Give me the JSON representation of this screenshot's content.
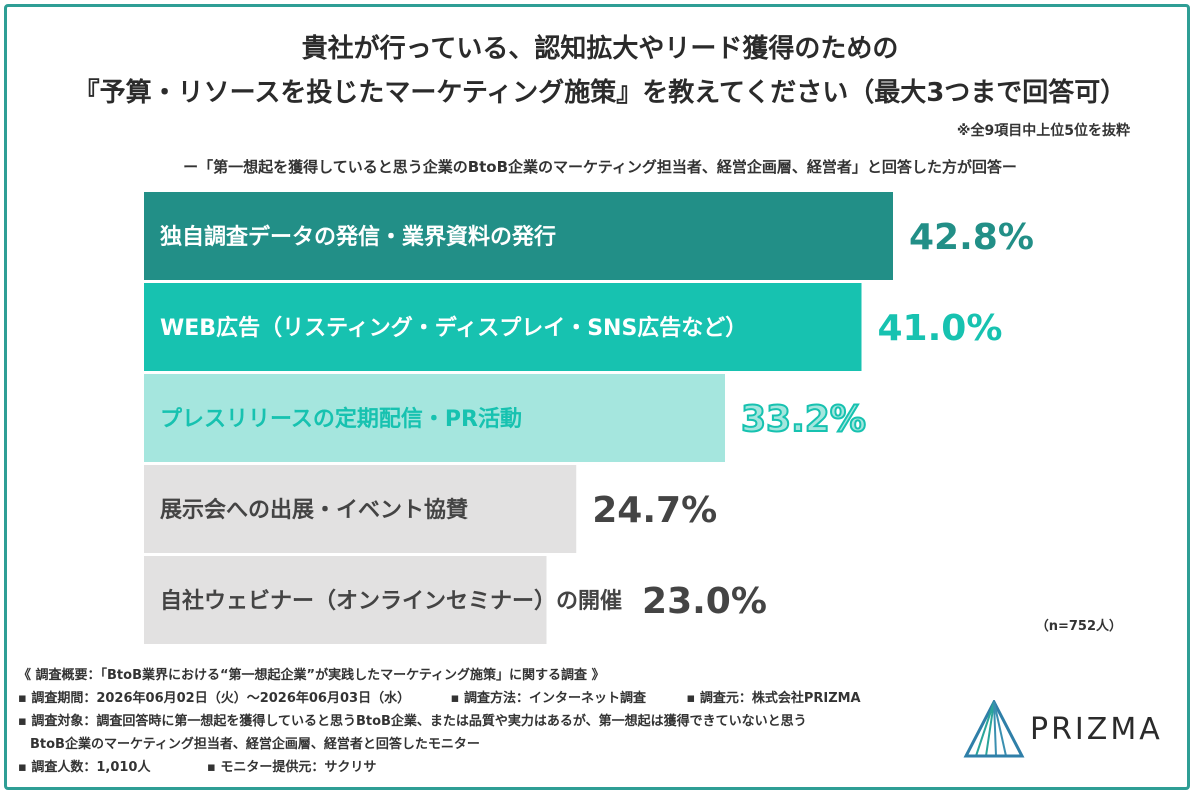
{
  "title_line1": "貴社が行っている、認知拡大やリード獲得のための",
  "title_line2": "『予算・リソースを投じたマーケティング施策』を教えてください（最大3つまで回答可）",
  "note": "※全9項目中上位5位を抜粋",
  "subtitle": "ー「第一想起を獲得していると思う企業のBtoB企業のマーケティング担当者、経営企画層、経営者」と回答した方が回答ー",
  "n_label": "（n=752人）",
  "footer": {
    "line1": "《 調査概要：「BtoB業界における“第一想起企業”が実践したマーケティング施策」に関する調査 》",
    "period": "▪ 調査期間：2026年06月02日（火）〜2026年06月03日（水）",
    "method": "▪ 調査方法：インターネット調査",
    "source": "▪ 調査元：株式会社PRIZMA",
    "target1": "▪ 調査対象：調査回答時に第一想起を獲得していると思うBtoB企業、または品質や実力はあるが、第一想起は獲得できていないと思う",
    "target2": "BtoB企業のマーケティング担当者、経営企画層、経営者と回答したモニター",
    "count": "▪ 調査人数：1,010人",
    "provider": "▪ モニター提供元：サクリサ"
  },
  "logo_text": "PRIZMA",
  "colors": {
    "frame": "#2f9e95",
    "bar1": "#228f87",
    "bar2": "#17c2b0",
    "bar3": "#a5e6de",
    "bar4": "#e2e1e1",
    "bar5": "#e2e1e1",
    "text_dark": "#444444"
  },
  "chart_data": {
    "type": "bar",
    "orientation": "horizontal",
    "categories": [
      "独自調査データの発信・業界資料の発行",
      "WEB広告（リスティング・ディスプレイ・SNS広告など）",
      "プレスリリースの定期配信・PR活動",
      "展示会への出展・イベント協賛",
      "自社ウェビナー（オンラインセミナー）の開催"
    ],
    "values": [
      42.8,
      41.0,
      33.2,
      24.7,
      23.0
    ],
    "value_labels": [
      "42.8%",
      "41.0%",
      "33.2%",
      "24.7%",
      "23.0%"
    ],
    "unit": "%",
    "xlim": [
      0,
      50
    ],
    "grid": false
  }
}
